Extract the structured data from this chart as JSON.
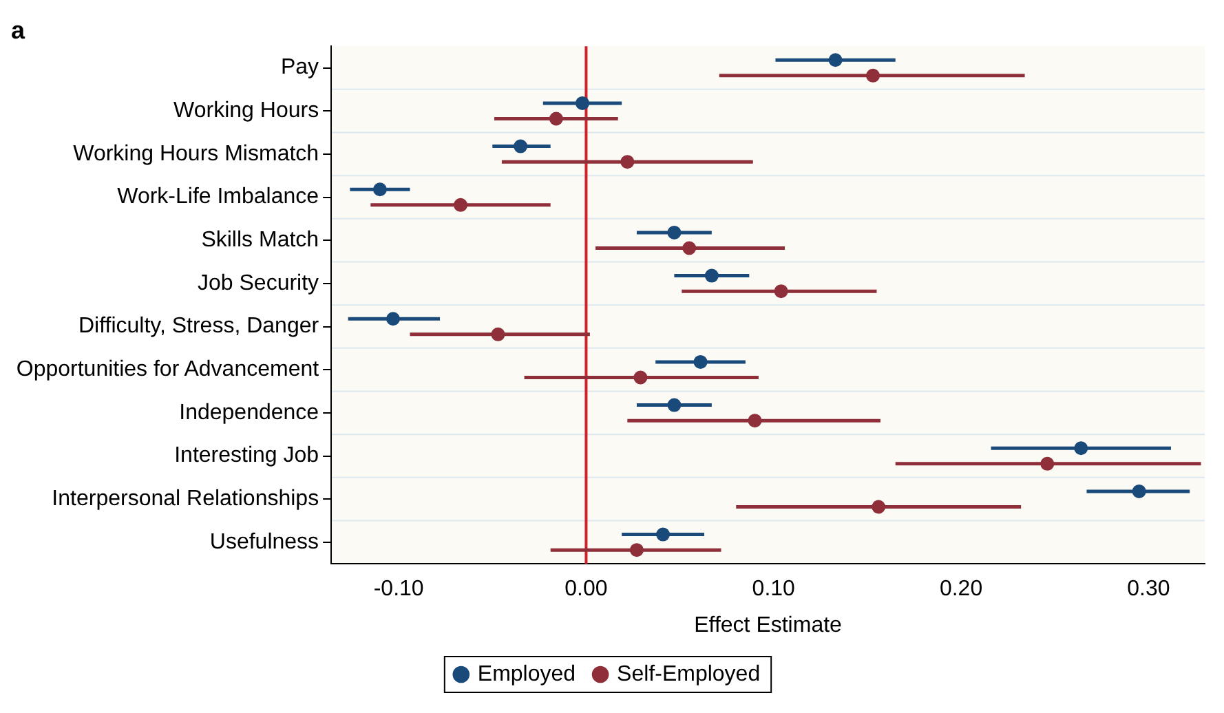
{
  "chart_data": {
    "type": "scatter",
    "orientation": "horizontal",
    "title": "a",
    "xlabel": "Effect Estimate",
    "categories": [
      "Pay",
      "Working Hours",
      "Working Hours Mismatch",
      "Work-Life Imbalance",
      "Skills Match",
      "Job Security",
      "Difficulty, Stress, Danger",
      "Opportunities for Advancement",
      "Independence",
      "Interesting Job",
      "Interpersonal Relationships",
      "Usefulness"
    ],
    "series": [
      {
        "name": "Employed",
        "color": "#1a4a7a",
        "values": [
          0.133,
          -0.002,
          -0.035,
          -0.11,
          0.047,
          0.067,
          -0.103,
          0.061,
          0.047,
          0.264,
          0.295,
          0.041
        ],
        "errors": [
          [
            0.101,
            0.165
          ],
          [
            -0.023,
            0.019
          ],
          [
            -0.05,
            -0.019
          ],
          [
            -0.126,
            -0.094
          ],
          [
            0.027,
            0.067
          ],
          [
            0.047,
            0.087
          ],
          [
            -0.127,
            -0.078
          ],
          [
            0.037,
            0.085
          ],
          [
            0.027,
            0.067
          ],
          [
            0.216,
            0.312
          ],
          [
            0.267,
            0.322
          ],
          [
            0.019,
            0.063
          ]
        ]
      },
      {
        "name": "Self-Employed",
        "color": "#8f2f3a",
        "values": [
          0.153,
          -0.016,
          0.022,
          -0.067,
          0.055,
          0.104,
          -0.047,
          0.029,
          0.09,
          0.246,
          0.156,
          0.027
        ],
        "errors": [
          [
            0.071,
            0.234
          ],
          [
            -0.049,
            0.017
          ],
          [
            -0.045,
            0.089
          ],
          [
            -0.115,
            -0.019
          ],
          [
            0.005,
            0.106
          ],
          [
            0.051,
            0.155
          ],
          [
            -0.094,
            0.002
          ],
          [
            -0.033,
            0.092
          ],
          [
            0.022,
            0.157
          ],
          [
            0.165,
            0.328
          ],
          [
            0.08,
            0.232
          ],
          [
            -0.019,
            0.072
          ]
        ]
      }
    ],
    "xlim": [
      -0.136,
      0.33
    ],
    "xticks": [
      {
        "value": -0.1,
        "label": "-0.10"
      },
      {
        "value": 0,
        "label": "0.00"
      },
      {
        "value": 0.1,
        "label": "0.10"
      },
      {
        "value": 0.2,
        "label": "0.20"
      },
      {
        "value": 0.3,
        "label": "0.30"
      }
    ],
    "ref_lines": [
      {
        "axis": "x",
        "value": 0,
        "color": "#d0212b"
      }
    ],
    "grid": "y",
    "legend": "bottom",
    "marker": "circle"
  }
}
